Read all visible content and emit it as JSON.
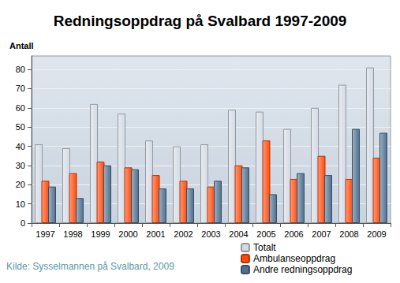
{
  "chart_data": {
    "type": "bar",
    "title": "Redningsoppdrag på Svalbard 1997-2009",
    "ylabel": "Antall",
    "annotations": [
      "Kilde: Sysselmannen på Svalbard, 2009"
    ],
    "categories": [
      "1997",
      "1998",
      "1999",
      "2000",
      "2001",
      "2002",
      "2003",
      "2004",
      "2005",
      "2006",
      "2007",
      "2008",
      "2009"
    ],
    "series": [
      {
        "name": "Totalt",
        "color": "#d3dae5",
        "values": [
          41,
          39,
          62,
          57,
          43,
          40,
          41,
          59,
          58,
          49,
          60,
          72,
          81
        ]
      },
      {
        "name": "Ambulanseoppdrag",
        "color": "#ff4a0a",
        "values": [
          22,
          26,
          32,
          29,
          25,
          22,
          19,
          30,
          43,
          23,
          35,
          23,
          34
        ]
      },
      {
        "name": "Andre redningsoppdrag",
        "color": "#4f6f8f",
        "values": [
          19,
          13,
          30,
          28,
          18,
          18,
          22,
          29,
          15,
          26,
          25,
          49,
          47
        ]
      }
    ],
    "ylim": [
      0,
      87
    ],
    "yticks": [
      0,
      10,
      20,
      30,
      40,
      50,
      60,
      70,
      80
    ],
    "grid": true,
    "legend": "lower right"
  }
}
